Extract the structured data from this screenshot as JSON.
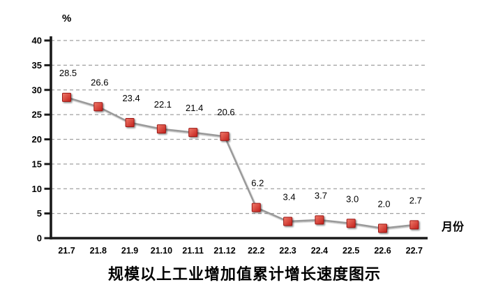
{
  "chart_data": {
    "type": "line",
    "title": "规模以上工业增加值累计增长速度图示",
    "y_unit": "%",
    "x_unit": "月份",
    "categories": [
      "21.7",
      "21.8",
      "21.9",
      "21.10",
      "21.11",
      "21.12",
      "22.2",
      "22.3",
      "22.4",
      "22.5",
      "22.6",
      "22.7"
    ],
    "values": [
      28.5,
      26.6,
      23.4,
      22.1,
      21.4,
      20.6,
      6.2,
      3.4,
      3.7,
      3.0,
      2.0,
      2.7
    ],
    "value_labels": [
      "28.5",
      "26.6",
      "23.4",
      "22.1",
      "21.4",
      "20.6",
      "6.2",
      "3.4",
      "3.7",
      "3.0",
      "2.0",
      "2.7"
    ],
    "ylim": [
      0,
      40
    ],
    "ytick_step": 5,
    "ytick_labels": [
      "0",
      "5",
      "10",
      "15",
      "20",
      "25",
      "30",
      "35",
      "40"
    ],
    "grid": "dashed horizontal",
    "legend": "none",
    "colors": {
      "marker_fill_light": "#F07B6B",
      "marker_fill_dark": "#C21F1A",
      "marker_stroke": "#9C1813",
      "line": "#999999",
      "grid": "#A0A0A0",
      "axis": "#1A1A1A",
      "text": "#000000"
    }
  }
}
